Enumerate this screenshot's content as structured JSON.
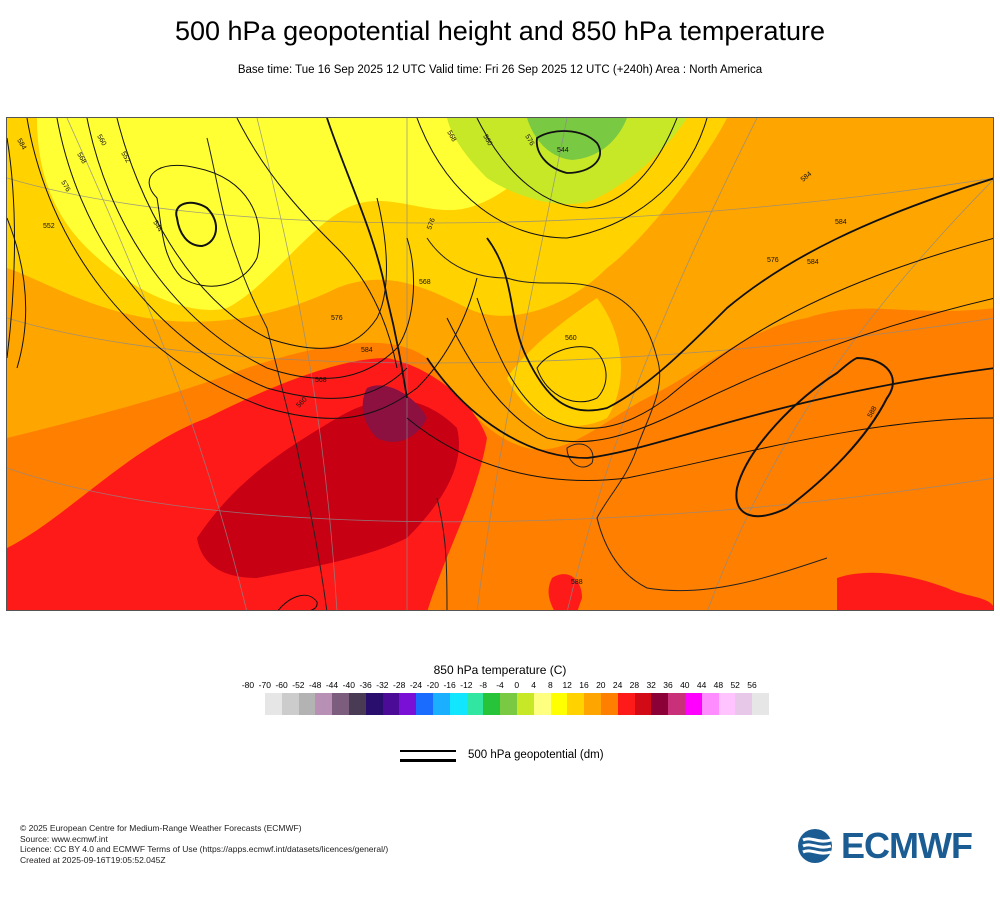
{
  "header": {
    "title": "500 hPa geopotential height and 850 hPa temperature",
    "subtitle": "Base time: Tue 16 Sep 2025 12 UTC Valid time: Fri 26 Sep 2025 12 UTC (+240h) Area : North America"
  },
  "map": {
    "contour_labels": [
      "584",
      "560",
      "568",
      "552",
      "576",
      "544",
      "544",
      "560",
      "576",
      "568",
      "576",
      "584",
      "560",
      "568",
      "576",
      "584",
      "552",
      "560",
      "568",
      "576",
      "584",
      "584",
      "588",
      "588"
    ],
    "colors": {
      "ocean_warm": "#ff6a00",
      "hot": "#ff1a1a",
      "very_hot": "#c80014",
      "extreme": "#8c1040",
      "warm": "#ffa500",
      "mild": "#ffd200",
      "cool": "#ffff33",
      "cold": "#c6e827",
      "green": "#7ac943"
    }
  },
  "legend": {
    "title": "850 hPa temperature (C)",
    "ticks": [
      "-80",
      "-70",
      "-60",
      "-52",
      "-48",
      "-44",
      "-40",
      "-36",
      "-32",
      "-28",
      "-24",
      "-20",
      "-16",
      "-12",
      "-8",
      "-4",
      "0",
      "4",
      "8",
      "12",
      "16",
      "20",
      "24",
      "28",
      "32",
      "36",
      "40",
      "44",
      "48",
      "52",
      "56"
    ],
    "colors": [
      "#e6e6e6",
      "#cccccc",
      "#b3b3b3",
      "#b88fb5",
      "#7d5d7d",
      "#4a3b55",
      "#2a0e6e",
      "#4b0b96",
      "#7a10d6",
      "#1a6cff",
      "#1ab0ff",
      "#12e6ff",
      "#30e6a0",
      "#27c43a",
      "#7ac943",
      "#c6e827",
      "#ffff80",
      "#ffff00",
      "#ffd200",
      "#ffa500",
      "#ff7f00",
      "#ff1a1a",
      "#d10a16",
      "#8b0036",
      "#c8307a",
      "#ff00ff",
      "#ff8cff",
      "#ffc4ff",
      "#e8c8e8",
      "#e6e6e6"
    ],
    "contour_label": "500 hPa geopotential (dm)"
  },
  "footer": {
    "lines": [
      "© 2025 European Centre for Medium-Range Weather Forecasts (ECMWF)",
      "Source: www.ecmwf.int",
      "Licence: CC BY 4.0 and ECMWF Terms of Use (https://apps.ecmwf.int/datasets/licences/general/)",
      "Created at 2025-09-16T19:05:52.045Z"
    ]
  },
  "logo": {
    "text": "ECMWF",
    "color": "#1b5d93"
  }
}
